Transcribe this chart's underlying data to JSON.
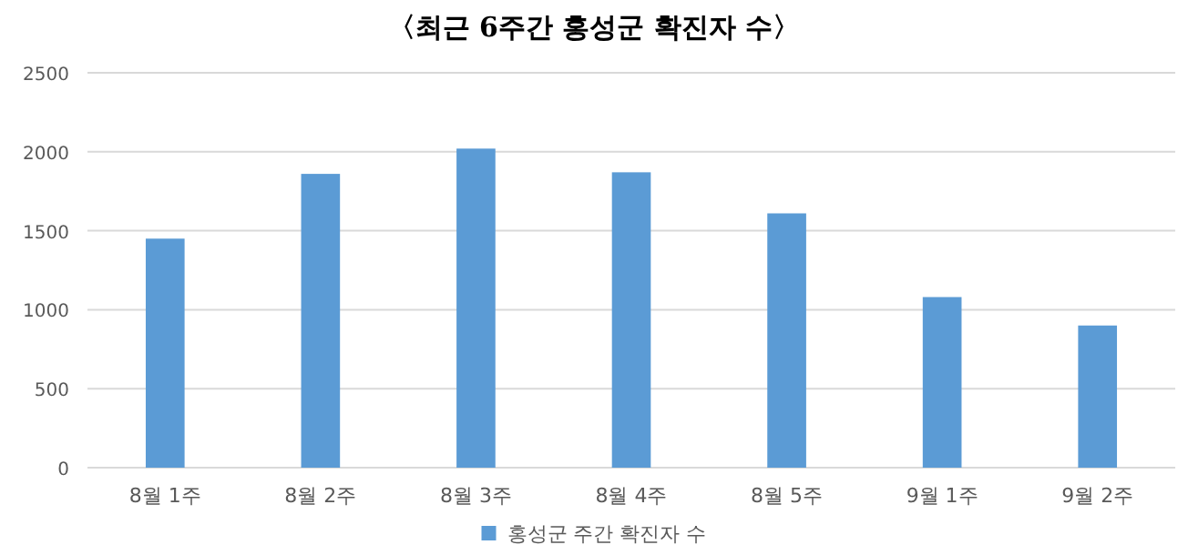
{
  "chart_data": {
    "type": "bar",
    "title": "〈최근 6주간 홍성군 확진자 수〉",
    "categories": [
      "8월 1주",
      "8월 2주",
      "8월 3주",
      "8월 4주",
      "8월 5주",
      "9월 1주",
      "9월 2주"
    ],
    "series": [
      {
        "name": "홍성군 주간 확진자 수",
        "color": "#5b9bd5",
        "values": [
          1450,
          1860,
          2020,
          1870,
          1610,
          1080,
          900
        ]
      }
    ],
    "ylim": [
      0,
      2500
    ],
    "yticks": [
      0,
      500,
      1000,
      1500,
      2000,
      2500
    ],
    "grid": "y",
    "legend": "bottom"
  }
}
